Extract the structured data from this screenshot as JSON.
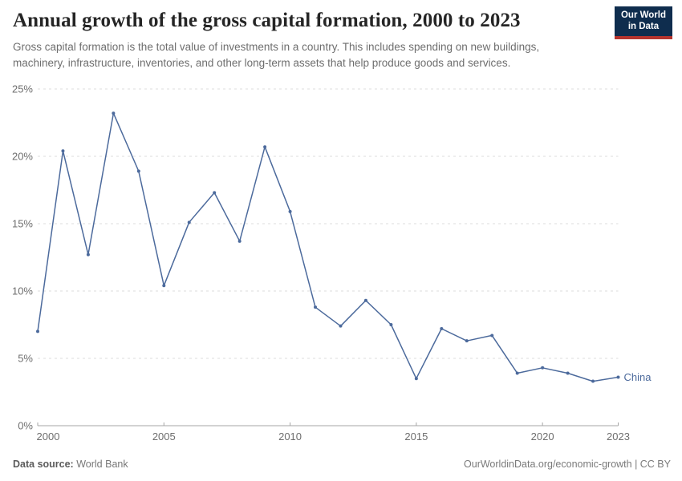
{
  "header": {
    "title": "Annual growth of the gross capital formation, 2000 to 2023",
    "subtitle": "Gross capital formation is the total value of investments in a country. This includes spending on new buildings, machinery, infrastructure, inventories, and other long-term assets that help produce goods and services."
  },
  "logo": {
    "line1": "Our World",
    "line2": "in Data"
  },
  "chart_data": {
    "type": "line",
    "title": "Annual growth of the gross capital formation, 2000 to 2023",
    "x": [
      2000,
      2001,
      2002,
      2003,
      2004,
      2005,
      2006,
      2007,
      2008,
      2009,
      2010,
      2011,
      2012,
      2013,
      2014,
      2015,
      2016,
      2017,
      2018,
      2019,
      2020,
      2021,
      2022,
      2023
    ],
    "series": [
      {
        "name": "China",
        "values": [
          7.0,
          20.4,
          12.7,
          23.2,
          18.9,
          10.4,
          15.1,
          17.3,
          13.7,
          20.7,
          15.9,
          8.8,
          7.4,
          9.3,
          7.5,
          3.5,
          7.2,
          6.3,
          6.7,
          3.9,
          4.3,
          3.9,
          3.3,
          3.6
        ]
      }
    ],
    "xlabel": "",
    "ylabel": "",
    "xlim": [
      2000,
      2023
    ],
    "ylim": [
      0,
      25
    ],
    "yticks": [
      {
        "v": 0,
        "label": "0%"
      },
      {
        "v": 5,
        "label": "5%"
      },
      {
        "v": 10,
        "label": "10%"
      },
      {
        "v": 15,
        "label": "15%"
      },
      {
        "v": 20,
        "label": "20%"
      },
      {
        "v": 25,
        "label": "25%"
      }
    ],
    "xticks": [
      {
        "v": 2000,
        "label": "2000"
      },
      {
        "v": 2005,
        "label": "2005"
      },
      {
        "v": 2010,
        "label": "2010"
      },
      {
        "v": 2015,
        "label": "2015"
      },
      {
        "v": 2020,
        "label": "2020"
      },
      {
        "v": 2023,
        "label": "2023"
      }
    ],
    "grid": "horizontal-dashed",
    "legend": "end-of-line-label",
    "colors": {
      "line": "#4C6A9C",
      "grid": "#dcdcdc",
      "axis": "#a5a5a5",
      "tick_text": "#6e6e6e"
    }
  },
  "footer": {
    "source_label": "Data source:",
    "source_value": "World Bank",
    "right_text": "OurWorldinData.org/economic-growth | CC BY"
  }
}
